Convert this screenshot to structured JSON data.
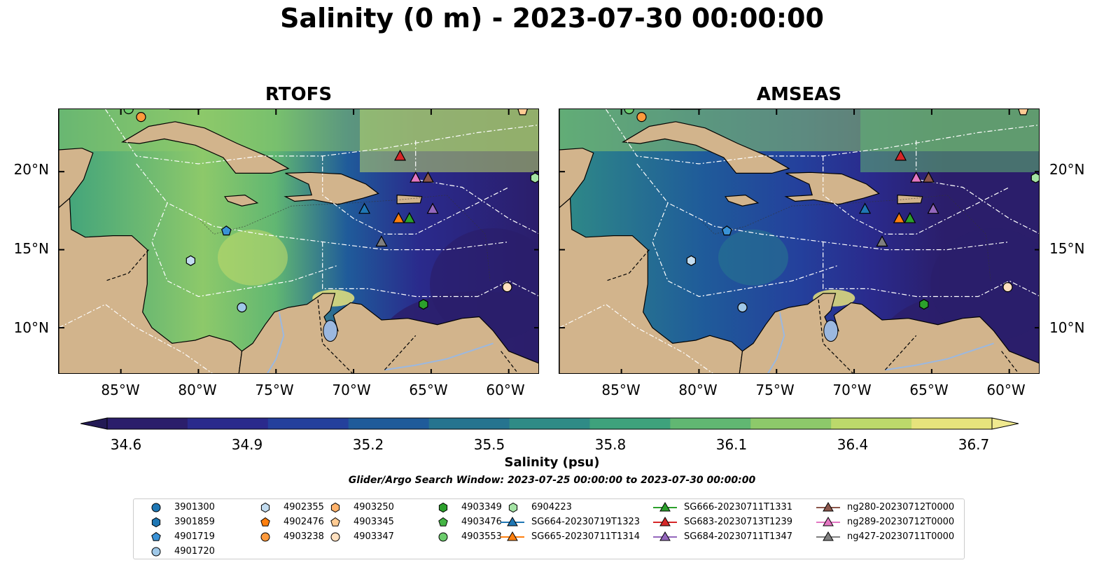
{
  "title": "Salinity (0 m) - 2023-07-30 00:00:00",
  "panels": [
    {
      "title": "RTOFS"
    },
    {
      "title": "AMSEAS"
    }
  ],
  "lat_labels": [
    "20°N",
    "15°N",
    "10°N"
  ],
  "lon_labels": [
    "85°W",
    "80°W",
    "75°W",
    "70°W",
    "65°W",
    "60°W"
  ],
  "colorbar": {
    "label": "Salinity (psu)",
    "ticks": [
      "34.6",
      "34.9",
      "35.2",
      "35.5",
      "35.8",
      "36.1",
      "36.4",
      "36.7"
    ],
    "colors": [
      "#2b1e6b",
      "#2a2a8c",
      "#24409c",
      "#1f5b9a",
      "#26748f",
      "#2f8b86",
      "#3ea27c",
      "#61b772",
      "#8dc96a",
      "#bcd96b",
      "#e6e37c"
    ]
  },
  "search_window": "Glider/Argo Search Window: 2023-07-25 00:00:00 to 2023-07-30 00:00:00",
  "legend": {
    "columns": [
      [
        {
          "label": "3901300",
          "marker": "circle",
          "color": "#1f77b4"
        },
        {
          "label": "3901859",
          "marker": "hexagon",
          "color": "#1f77b4"
        },
        {
          "label": "4901719",
          "marker": "pentagon",
          "color": "#3a92d6"
        },
        {
          "label": "4901720",
          "marker": "circle",
          "color": "#9fc8e8"
        }
      ],
      [
        {
          "label": "4902355",
          "marker": "hexagon",
          "color": "#c2dcf0"
        },
        {
          "label": "4902476",
          "marker": "pentagon",
          "color": "#ff7f0e"
        },
        {
          "label": "4903238",
          "marker": "circle",
          "color": "#ff9a3c"
        }
      ],
      [
        {
          "label": "4903250",
          "marker": "hexagon",
          "color": "#ffb26b"
        },
        {
          "label": "4903345",
          "marker": "pentagon",
          "color": "#ffcb93"
        },
        {
          "label": "4903347",
          "marker": "circle",
          "color": "#ffe0bf"
        }
      ],
      [
        {
          "label": "4903349",
          "marker": "hexagon",
          "color": "#2ca02c"
        },
        {
          "label": "4903476",
          "marker": "pentagon",
          "color": "#45b545"
        },
        {
          "label": "4903553",
          "marker": "circle",
          "color": "#6ccc6c"
        }
      ],
      [
        {
          "label": "6904223",
          "marker": "hexagon",
          "color": "#a4e3a4"
        },
        {
          "label": "SG664-20230719T1323",
          "marker": "triangle-line",
          "color": "#1f77b4"
        },
        {
          "label": "SG665-20230711T1314",
          "marker": "triangle-line",
          "color": "#ff7f0e"
        }
      ],
      [
        {
          "label": "SG666-20230711T1331",
          "marker": "triangle-line",
          "color": "#2ca02c"
        },
        {
          "label": "SG683-20230713T1239",
          "marker": "triangle-line",
          "color": "#d62728"
        },
        {
          "label": "SG684-20230711T1347",
          "marker": "triangle-line",
          "color": "#9467bd"
        }
      ],
      [
        {
          "label": "ng280-20230712T0000",
          "marker": "triangle-line",
          "color": "#8c564b"
        },
        {
          "label": "ng289-20230712T0000",
          "marker": "triangle-line",
          "color": "#e377c2"
        },
        {
          "label": "ng427-20230711T0000",
          "marker": "triangle-line",
          "color": "#7f7f7f"
        }
      ]
    ]
  }
}
